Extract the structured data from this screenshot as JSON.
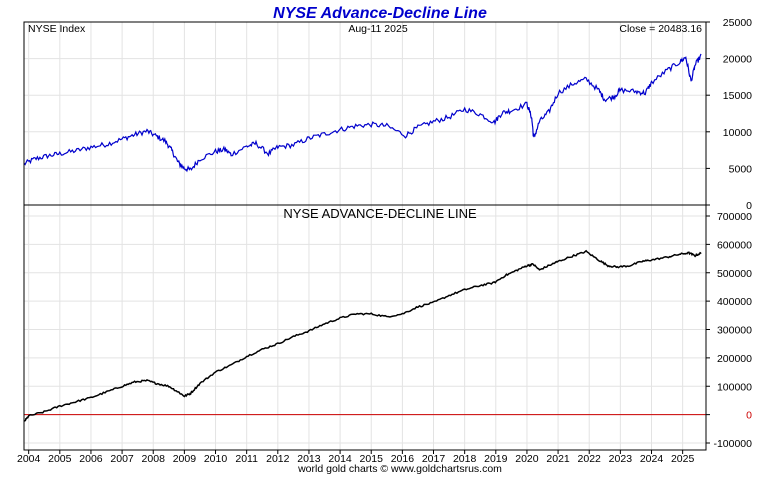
{
  "header": {
    "title": "NYSE Advance-Decline Line",
    "title_color": "#0000cc"
  },
  "top_panel": {
    "label_left": "NYSE Index",
    "label_center": "Aug-11  2025",
    "label_right": "Close = 20483.16"
  },
  "bottom_panel": {
    "title": "NYSE ADVANCE-DECLINE LINE"
  },
  "footer": {
    "credit": "world gold charts © www.goldchartsrus.com"
  },
  "colors": {
    "nyse_line": "#0000cc",
    "ad_line": "#000000",
    "zero_line": "#cc0000",
    "grid": "#e3e3e3"
  },
  "chart_data": [
    {
      "type": "line",
      "title": "",
      "xlabel": "",
      "ylabel": "",
      "x_ticks": [
        "2004",
        "2005",
        "2006",
        "2007",
        "2008",
        "2009",
        "2010",
        "2011",
        "2012",
        "2013",
        "2014",
        "2015",
        "2016",
        "2017",
        "2018",
        "2019",
        "2020",
        "2021",
        "2022",
        "2023",
        "2024",
        "2025"
      ],
      "xlim": [
        2003.85,
        2025.75
      ],
      "ylim": [
        0,
        25000
      ],
      "y_ticks": [
        0,
        5000,
        10000,
        15000,
        20000,
        25000
      ],
      "grid": true,
      "series": [
        {
          "name": "",
          "x": [
            2003.85,
            2004.2,
            2004.6,
            2005.0,
            2005.5,
            2006.0,
            2006.5,
            2007.0,
            2007.4,
            2007.8,
            2008.1,
            2008.4,
            2008.6,
            2008.8,
            2009.0,
            2009.2,
            2009.5,
            2010.0,
            2010.3,
            2010.5,
            2011.0,
            2011.3,
            2011.7,
            2012.0,
            2012.5,
            2013.0,
            2013.5,
            2014.0,
            2014.5,
            2015.0,
            2015.5,
            2016.1,
            2016.5,
            2017.0,
            2017.5,
            2018.0,
            2018.5,
            2018.95,
            2019.2,
            2019.5,
            2020.0,
            2020.15,
            2020.22,
            2020.4,
            2020.7,
            2021.0,
            2021.5,
            2021.9,
            2022.3,
            2022.5,
            2022.8,
            2023.0,
            2023.5,
            2023.8,
            2024.0,
            2024.5,
            2024.9,
            2025.1,
            2025.27,
            2025.4,
            2025.6
          ],
          "values": [
            5600,
            6300,
            6700,
            7000,
            7400,
            7900,
            8300,
            9000,
            9600,
            10100,
            9400,
            8700,
            7400,
            5800,
            5000,
            4800,
            6300,
            7300,
            7600,
            6900,
            8000,
            8400,
            7000,
            7900,
            8200,
            9100,
            9700,
            10300,
            10800,
            11000,
            10800,
            9500,
            10600,
            11400,
            12000,
            13100,
            12400,
            11300,
            12600,
            12900,
            13800,
            12000,
            9100,
            11400,
            12700,
            15300,
            16600,
            17200,
            15700,
            14400,
            14800,
            15700,
            15500,
            15300,
            16700,
            18400,
            19500,
            20200,
            16900,
            19100,
            20480
          ]
        }
      ]
    },
    {
      "type": "line",
      "title": "NYSE ADVANCE-DECLINE LINE",
      "xlabel": "",
      "ylabel": "",
      "x_ticks": [
        "2004",
        "2005",
        "2006",
        "2007",
        "2008",
        "2009",
        "2010",
        "2011",
        "2012",
        "2013",
        "2014",
        "2015",
        "2016",
        "2017",
        "2018",
        "2019",
        "2020",
        "2021",
        "2022",
        "2023",
        "2024",
        "2025"
      ],
      "xlim": [
        2003.85,
        2025.75
      ],
      "ylim": [
        -100000,
        700000
      ],
      "y_ticks": [
        -100000,
        0,
        100000,
        200000,
        300000,
        400000,
        500000,
        600000,
        700000
      ],
      "reference_line": 0,
      "grid": true,
      "series": [
        {
          "name": "",
          "x": [
            2003.85,
            2004.0,
            2004.5,
            2005.0,
            2005.5,
            2006.0,
            2006.5,
            2007.0,
            2007.4,
            2007.8,
            2008.1,
            2008.5,
            2008.8,
            2009.0,
            2009.2,
            2009.5,
            2010.0,
            2010.5,
            2011.0,
            2011.5,
            2012.0,
            2012.5,
            2013.0,
            2013.5,
            2014.0,
            2014.5,
            2015.0,
            2015.5,
            2016.0,
            2016.5,
            2017.0,
            2017.5,
            2018.0,
            2018.5,
            2018.95,
            2019.3,
            2019.7,
            2020.0,
            2020.2,
            2020.4,
            2020.8,
            2021.0,
            2021.5,
            2021.9,
            2022.3,
            2022.6,
            2022.9,
            2023.3,
            2023.7,
            2024.0,
            2024.5,
            2024.9,
            2025.2,
            2025.4,
            2025.6
          ],
          "values": [
            -25000,
            -5000,
            10000,
            30000,
            45000,
            60000,
            80000,
            100000,
            115000,
            120000,
            110000,
            100000,
            80000,
            65000,
            75000,
            110000,
            150000,
            175000,
            205000,
            230000,
            250000,
            275000,
            295000,
            320000,
            340000,
            355000,
            355000,
            345000,
            355000,
            380000,
            395000,
            420000,
            440000,
            455000,
            465000,
            490000,
            510000,
            525000,
            530000,
            510000,
            530000,
            540000,
            560000,
            575000,
            545000,
            525000,
            520000,
            525000,
            540000,
            545000,
            555000,
            565000,
            570000,
            560000,
            570000
          ]
        }
      ]
    }
  ]
}
